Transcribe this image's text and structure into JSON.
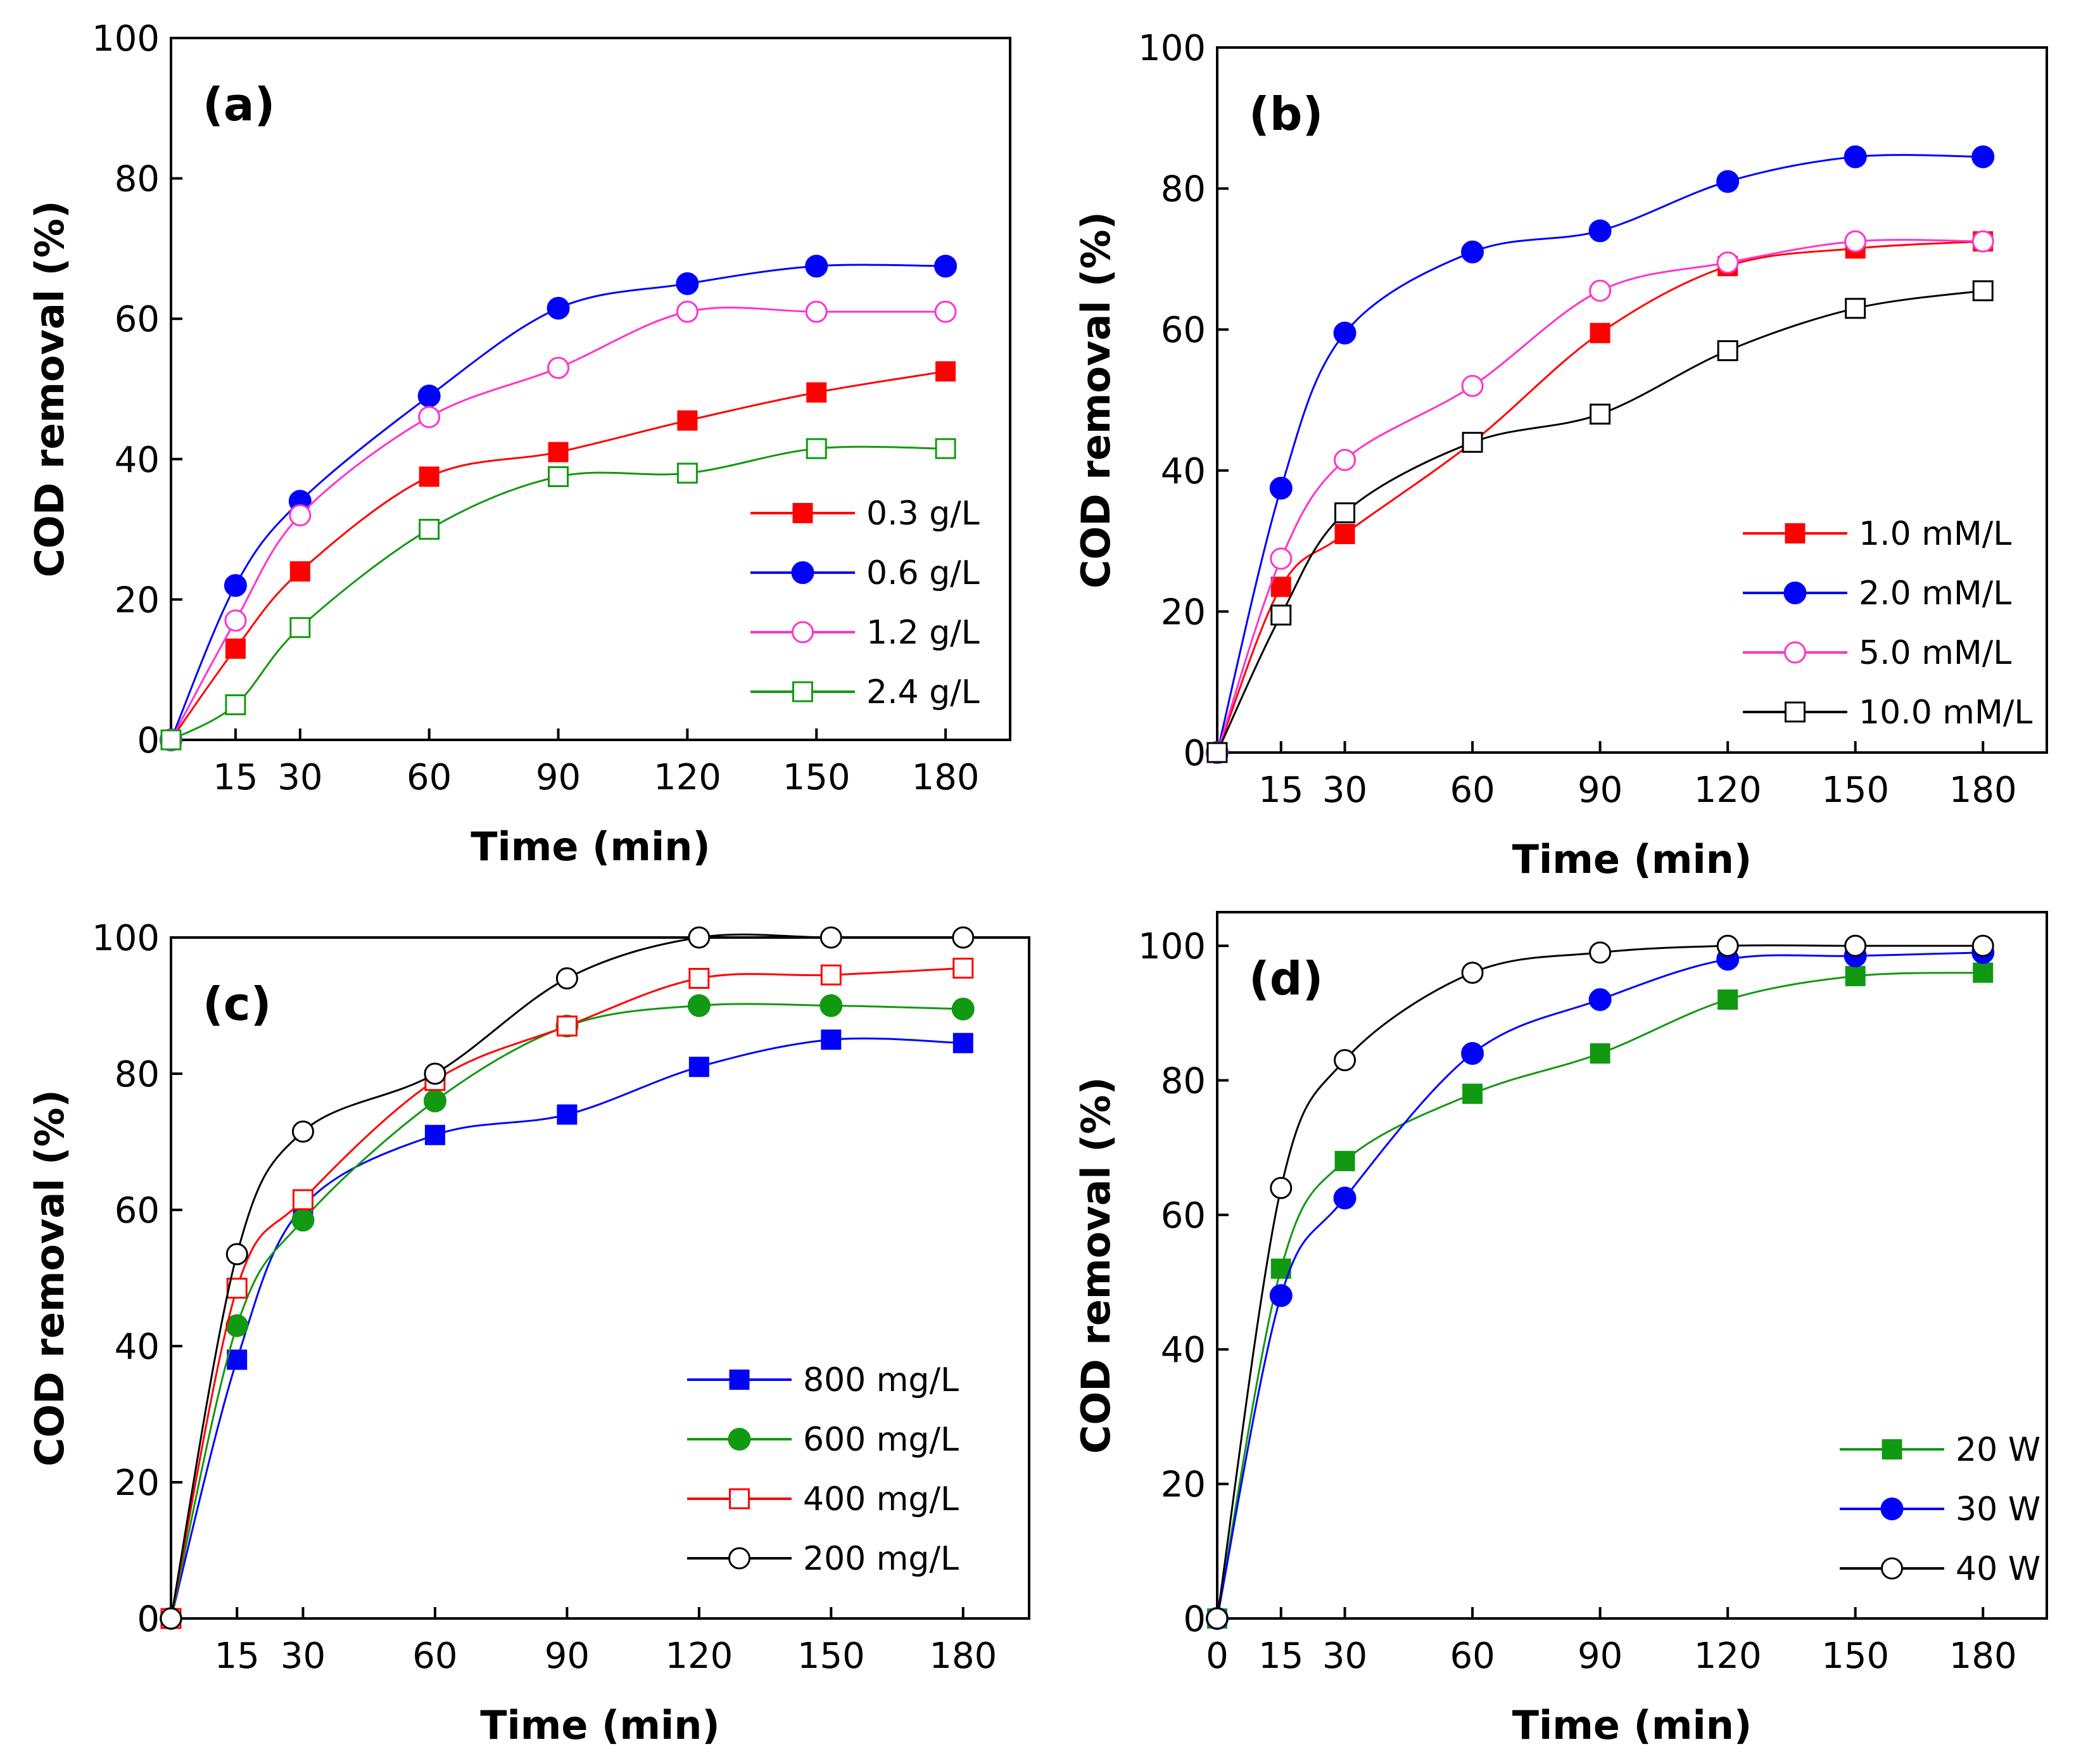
{
  "chart_data": [
    {
      "id": "a",
      "type": "line",
      "panel_label": "(a)",
      "xlabel": "Time (min)",
      "ylabel": "COD removal (%)",
      "xlim": [
        0,
        195
      ],
      "ylim": [
        0,
        100
      ],
      "xticks": [
        15,
        30,
        60,
        90,
        120,
        150,
        180
      ],
      "yticks": [
        0,
        20,
        40,
        60,
        80,
        100
      ],
      "legend_position": "center-right",
      "series": [
        {
          "name": "0.3 g/L",
          "color": "#ff0000",
          "marker": "square-filled",
          "x": [
            0,
            15,
            30,
            60,
            90,
            120,
            150,
            180
          ],
          "values": [
            0,
            13,
            24,
            37.5,
            41,
            45.5,
            49.5,
            52.5
          ]
        },
        {
          "name": "0.6 g/L",
          "color": "#0000ff",
          "marker": "circle-filled",
          "x": [
            0,
            15,
            30,
            60,
            90,
            120,
            150,
            180
          ],
          "values": [
            0,
            22,
            34,
            49,
            61.5,
            65,
            67.5,
            67.5
          ]
        },
        {
          "name": "1.2 g/L",
          "color": "#ff33cc",
          "marker": "circle-open",
          "x": [
            0,
            15,
            30,
            60,
            90,
            120,
            150,
            180
          ],
          "values": [
            0,
            17,
            32,
            46,
            53,
            61,
            61,
            61
          ]
        },
        {
          "name": "2.4 g/L",
          "color": "#119911",
          "marker": "square-open",
          "x": [
            0,
            15,
            30,
            60,
            90,
            120,
            150,
            180
          ],
          "values": [
            0,
            5,
            16,
            30,
            37.5,
            38,
            41.5,
            41.5
          ]
        }
      ]
    },
    {
      "id": "b",
      "type": "line",
      "panel_label": "(b)",
      "xlabel": "Time (min)",
      "ylabel": "COD removal (%)",
      "xlim": [
        0,
        195
      ],
      "ylim": [
        0,
        100
      ],
      "xticks": [
        15,
        30,
        60,
        90,
        120,
        150,
        180
      ],
      "yticks": [
        0,
        20,
        40,
        60,
        80,
        100
      ],
      "legend_position": "lower-right",
      "series": [
        {
          "name": "1.0 mM/L",
          "color": "#ff0000",
          "marker": "square-filled",
          "x": [
            0,
            15,
            30,
            60,
            90,
            120,
            150,
            180
          ],
          "values": [
            0,
            23.5,
            31,
            44,
            59.5,
            69,
            71.5,
            72.5
          ]
        },
        {
          "name": "2.0 mM/L",
          "color": "#0000ff",
          "marker": "circle-filled",
          "x": [
            0,
            15,
            30,
            60,
            90,
            120,
            150,
            180
          ],
          "values": [
            0,
            37.5,
            59.5,
            71,
            74,
            81,
            84.5,
            84.5
          ]
        },
        {
          "name": "5.0 mM/L",
          "color": "#ff33cc",
          "marker": "circle-open",
          "x": [
            0,
            15,
            30,
            60,
            90,
            120,
            150,
            180
          ],
          "values": [
            0,
            27.5,
            41.5,
            52,
            65.5,
            69.5,
            72.5,
            72.5
          ]
        },
        {
          "name": "10.0 mM/L",
          "color": "#000000",
          "marker": "square-open",
          "x": [
            0,
            15,
            30,
            60,
            90,
            120,
            150,
            180
          ],
          "values": [
            0,
            19.5,
            34,
            44,
            48,
            57,
            63,
            65.5
          ]
        }
      ]
    },
    {
      "id": "c",
      "type": "line",
      "panel_label": "(c)",
      "xlabel": "Time (min)",
      "ylabel": "COD removal (%)",
      "xlim": [
        0,
        195
      ],
      "ylim": [
        0,
        100
      ],
      "xticks": [
        15,
        30,
        60,
        90,
        120,
        150,
        180
      ],
      "yticks": [
        0,
        20,
        40,
        60,
        80,
        100
      ],
      "legend_position": "lower-right",
      "series": [
        {
          "name": "800 mg/L",
          "color": "#0000ff",
          "marker": "square-filled",
          "x": [
            0,
            15,
            30,
            60,
            90,
            120,
            150,
            180
          ],
          "values": [
            0,
            38,
            60.5,
            71,
            74,
            81,
            85,
            84.5
          ]
        },
        {
          "name": "600 mg/L",
          "color": "#119911",
          "marker": "circle-filled",
          "x": [
            0,
            15,
            30,
            60,
            90,
            120,
            150,
            180
          ],
          "values": [
            0,
            43,
            58.5,
            76,
            87,
            90,
            90,
            89.5
          ]
        },
        {
          "name": "400 mg/L",
          "color": "#ff0000",
          "marker": "square-open",
          "x": [
            0,
            15,
            30,
            60,
            90,
            120,
            150,
            180
          ],
          "values": [
            0,
            48.5,
            61.5,
            79,
            87,
            94,
            94.5,
            95.5
          ]
        },
        {
          "name": "200 mg/L",
          "color": "#000000",
          "marker": "circle-open",
          "x": [
            0,
            15,
            30,
            60,
            90,
            120,
            150,
            180
          ],
          "values": [
            0,
            53.5,
            71.5,
            80,
            94,
            100,
            100,
            100
          ]
        }
      ]
    },
    {
      "id": "d",
      "type": "line",
      "panel_label": "(d)",
      "xlabel": "Time (min)",
      "ylabel": "COD removal (%)",
      "xlim": [
        0,
        195
      ],
      "ylim": [
        0,
        105
      ],
      "xticks": [
        0,
        15,
        30,
        60,
        90,
        120,
        150,
        180
      ],
      "yticks": [
        0,
        20,
        40,
        60,
        80,
        100
      ],
      "legend_position": "lower-right",
      "series": [
        {
          "name": "20 W",
          "color": "#119911",
          "marker": "square-filled",
          "x": [
            0,
            15,
            30,
            60,
            90,
            120,
            150,
            180
          ],
          "values": [
            0,
            52,
            68,
            78,
            84,
            92,
            95.5,
            96
          ]
        },
        {
          "name": "30 W",
          "color": "#0000ff",
          "marker": "circle-filled",
          "x": [
            0,
            15,
            30,
            60,
            90,
            120,
            150,
            180
          ],
          "values": [
            0,
            48,
            62.5,
            84,
            92,
            98,
            98.5,
            99
          ]
        },
        {
          "name": "40 W",
          "color": "#000000",
          "marker": "circle-open",
          "x": [
            0,
            15,
            30,
            60,
            90,
            120,
            150,
            180
          ],
          "values": [
            0,
            64,
            83,
            96,
            99,
            100,
            100,
            100
          ]
        }
      ]
    }
  ]
}
